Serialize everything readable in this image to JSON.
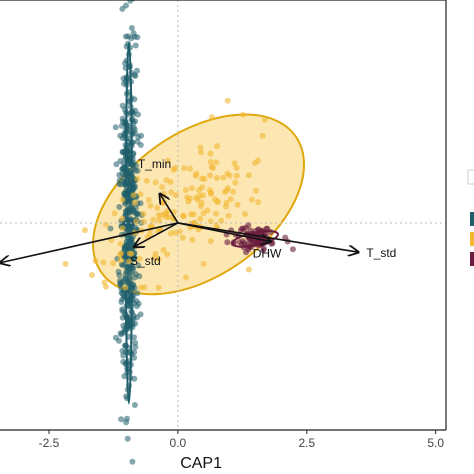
{
  "chart_data": {
    "type": "scatter",
    "title": "",
    "xlabel": "CAP1",
    "ylabel": "",
    "xlim": [
      -3.45,
      5.2
    ],
    "ylim": [
      -3.9,
      4.2
    ],
    "x_ticks": [
      "-2.5",
      "0.0",
      "2.5",
      "5.0"
    ],
    "x_tick_values": [
      -2.5,
      0.0,
      2.5,
      5.0
    ],
    "reference_lines": {
      "x": 0,
      "y": 0,
      "style": "dotted"
    },
    "grid": false,
    "colors": {
      "teal": "#1f5e6b",
      "gold": "#f2b731",
      "maroon": "#6b1e3f",
      "gold_fill": "#fbe3a6",
      "gold_stroke": "#e0a80e"
    },
    "series": [
      {
        "color": "#1f5e6b",
        "center": [
          -0.95,
          0.0
        ],
        "spread": [
          0.09,
          1.6
        ],
        "ellipse": {
          "center": [
            -0.95,
            0.0
          ],
          "rx": 0.06,
          "ry": 3.4,
          "rotation_deg": 0
        }
      },
      {
        "color": "#f2b731",
        "center": [
          0.05,
          0.3
        ],
        "spread": [
          0.75,
          0.9
        ],
        "ellipse": {
          "center": [
            0.4,
            0.35
          ],
          "rx": 2.3,
          "ry": 1.35,
          "rotation_deg": 35
        }
      },
      {
        "color": "#6b1e3f",
        "center": [
          1.5,
          -0.3
        ],
        "spread": [
          0.25,
          0.12
        ],
        "ellipse": {
          "center": [
            1.5,
            -0.3
          ],
          "rx": 0.45,
          "ry": 0.12,
          "rotation_deg": 12
        }
      }
    ],
    "vectors": [
      {
        "label": "T_std",
        "x": 3.5,
        "y": -0.55
      },
      {
        "label": "DHW",
        "x": 1.8,
        "y": -0.35
      },
      {
        "label": "T_min",
        "x": -0.35,
        "y": 0.55
      },
      {
        "label": "S_std",
        "x": -0.85,
        "y": -0.45
      },
      {
        "label": "",
        "x": -3.45,
        "y": -0.75
      }
    ]
  }
}
